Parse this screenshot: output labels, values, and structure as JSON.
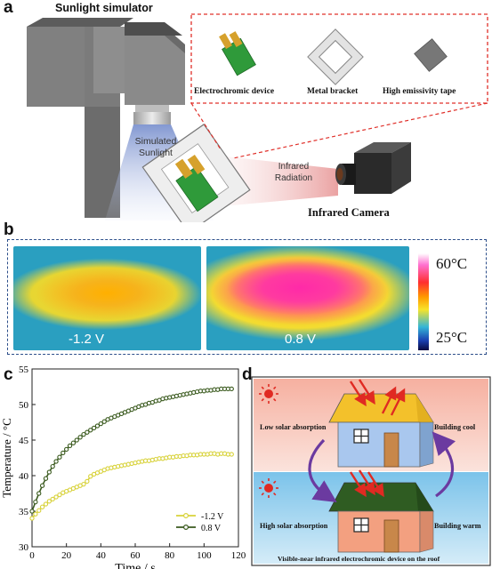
{
  "figure": {
    "panel_a": {
      "letter": "a",
      "simulator_title": "Sunlight simulator",
      "simulated_sunlight": [
        "Simulated",
        "Sunlight"
      ],
      "infrared_radiation": [
        "Infrared",
        "Radiation"
      ],
      "camera_label": "Infrared Camera",
      "components": [
        {
          "label": "Electrochromic device",
          "icon": "electrochromic-device-icon"
        },
        {
          "label": "Metal bracket",
          "icon": "metal-bracket-icon"
        },
        {
          "label": "High emissivity tape",
          "icon": "emissivity-tape-icon"
        }
      ],
      "colors": {
        "dashed_box": "#e0302a",
        "device_green": "#2f9a3a",
        "device_gold": "#d6a12c"
      }
    },
    "panel_b": {
      "letter": "b",
      "images": [
        {
          "label": "-1.2 V"
        },
        {
          "label": "0.8 V"
        }
      ],
      "scale_max": "60°C",
      "scale_min": "25°C",
      "colors": {
        "dashed_box": "#2c4e8a"
      }
    },
    "panel_c": {
      "letter": "c"
    },
    "panel_d": {
      "letter": "d",
      "low_absorption": "Low solar absorption",
      "building_cool": "Building cool",
      "high_absorption": "High solar absorption",
      "building_warm": "Building warm",
      "caption": "Visible-near infrared electrochromic device on the roof",
      "colors": {
        "roof_cool": "#f3c12b",
        "roof_warm": "#2f5c22",
        "arrow": "#6b3aa0",
        "ray": "#e02a22"
      }
    }
  },
  "chart_data": {
    "type": "line",
    "xlabel": "Time / s",
    "ylabel": "Temperature / °C",
    "xlim": [
      0,
      120
    ],
    "ylim": [
      30,
      55
    ],
    "xticks": [
      0,
      20,
      40,
      60,
      80,
      100,
      120
    ],
    "yticks": [
      30,
      35,
      40,
      45,
      50,
      55
    ],
    "legend_position": "bottom-right",
    "series": [
      {
        "name": "-1.2 V",
        "color": "#d8d23a",
        "x": [
          0,
          2,
          4,
          6,
          8,
          10,
          12,
          14,
          16,
          18,
          20,
          22,
          24,
          26,
          28,
          30,
          32,
          34,
          36,
          38,
          40,
          42,
          44,
          46,
          48,
          50,
          52,
          54,
          56,
          58,
          60,
          62,
          64,
          66,
          68,
          70,
          72,
          74,
          76,
          78,
          80,
          82,
          84,
          86,
          88,
          90,
          92,
          94,
          96,
          98,
          100,
          102,
          104,
          106,
          108,
          110,
          112,
          114,
          116
        ],
        "y": [
          34.0,
          34.6,
          35.1,
          35.6,
          36.0,
          36.4,
          36.7,
          37.0,
          37.3,
          37.6,
          37.8,
          38.0,
          38.2,
          38.4,
          38.6,
          38.8,
          39.2,
          39.9,
          40.2,
          40.4,
          40.6,
          40.8,
          41.0,
          41.1,
          41.2,
          41.3,
          41.4,
          41.5,
          41.6,
          41.7,
          41.8,
          41.9,
          42.0,
          42.1,
          42.1,
          42.2,
          42.3,
          42.4,
          42.4,
          42.5,
          42.6,
          42.6,
          42.7,
          42.7,
          42.8,
          42.8,
          42.9,
          42.9,
          42.9,
          43.0,
          43.0,
          43.0,
          43.1,
          43.1,
          43.0,
          43.1,
          43.1,
          43.0,
          43.0
        ]
      },
      {
        "name": "0.8 V",
        "color": "#3a5a1e",
        "x": [
          0,
          2,
          4,
          6,
          8,
          10,
          12,
          14,
          16,
          18,
          20,
          22,
          24,
          26,
          28,
          30,
          32,
          34,
          36,
          38,
          40,
          42,
          44,
          46,
          48,
          50,
          52,
          54,
          56,
          58,
          60,
          62,
          64,
          66,
          68,
          70,
          72,
          74,
          76,
          78,
          80,
          82,
          84,
          86,
          88,
          90,
          92,
          94,
          96,
          98,
          100,
          102,
          104,
          106,
          108,
          110,
          112,
          114,
          116
        ],
        "y": [
          35.0,
          36.3,
          37.5,
          38.6,
          39.6,
          40.5,
          41.3,
          42.0,
          42.6,
          43.2,
          43.7,
          44.2,
          44.6,
          45.0,
          45.4,
          45.8,
          46.1,
          46.4,
          46.7,
          47.0,
          47.3,
          47.6,
          47.9,
          48.1,
          48.3,
          48.5,
          48.7,
          48.9,
          49.1,
          49.3,
          49.5,
          49.7,
          49.9,
          50.0,
          50.2,
          50.3,
          50.5,
          50.6,
          50.8,
          50.9,
          51.0,
          51.1,
          51.2,
          51.3,
          51.4,
          51.5,
          51.6,
          51.7,
          51.8,
          51.9,
          51.9,
          52.0,
          52.0,
          52.1,
          52.1,
          52.2,
          52.2,
          52.2,
          52.2
        ]
      }
    ]
  }
}
